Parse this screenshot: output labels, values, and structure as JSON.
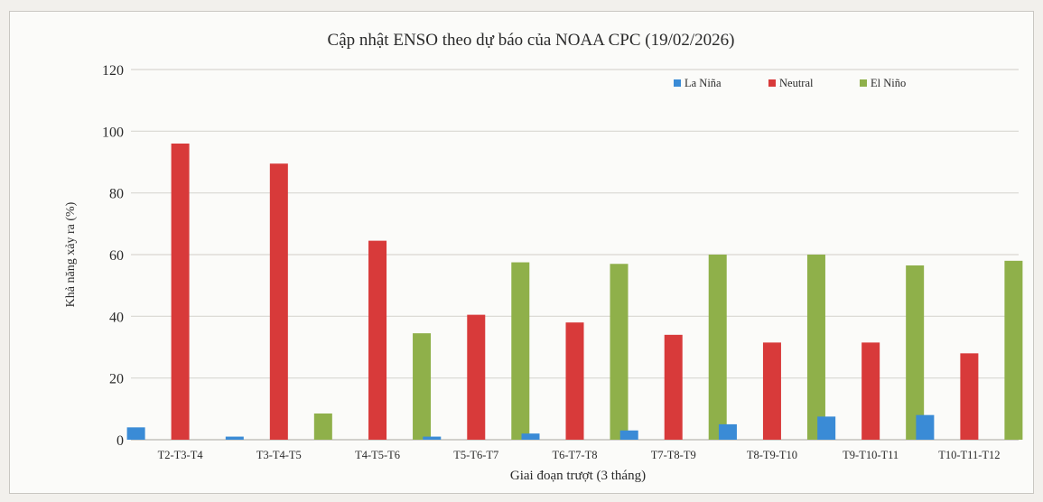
{
  "chart_data": {
    "type": "bar",
    "title": "Cập nhật ENSO theo dự báo của NOAA CPC (19/02/2026)",
    "xlabel": "Giai đoạn trượt (3 tháng)",
    "ylabel": "Khả năng xảy ra (%)",
    "ylim": [
      0,
      120
    ],
    "yticks": [
      0,
      20,
      40,
      60,
      80,
      100,
      120
    ],
    "grid": true,
    "legend_position": "top-right",
    "categories": [
      "T2-T3-T4",
      "T3-T4-T5",
      "T4-T5-T6",
      "T5-T6-T7",
      "T6-T7-T8",
      "T7-T8-T9",
      "T8-T9-T10",
      "T9-T10-T11",
      "T10-T11-T12"
    ],
    "series": [
      {
        "name": "La Niña",
        "color": "#3a8bd6",
        "values": [
          4,
          1,
          0,
          1,
          2,
          3,
          5,
          7.5,
          8
        ]
      },
      {
        "name": "Neutral",
        "color": "#d83a3a",
        "values": [
          96,
          89.5,
          64.5,
          40.5,
          38,
          34,
          31.5,
          31.5,
          28
        ]
      },
      {
        "name": "El Niño",
        "color": "#8fb04a",
        "values": [
          0,
          8.5,
          34.5,
          57.5,
          57,
          60,
          60,
          56.5,
          58
        ]
      }
    ]
  }
}
